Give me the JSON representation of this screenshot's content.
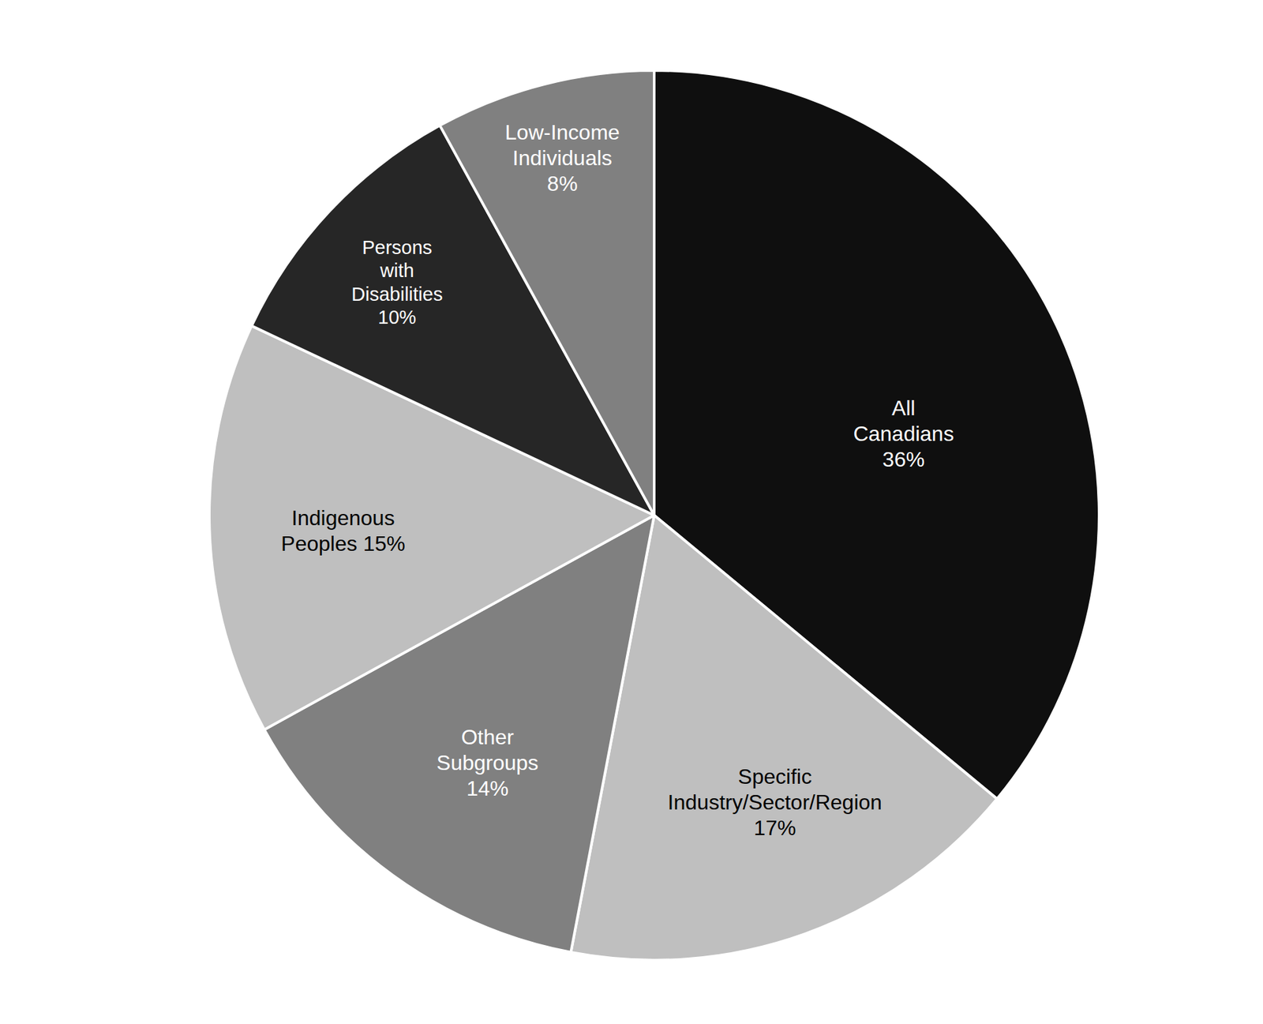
{
  "chart_data": {
    "type": "pie",
    "categories": [
      "All Canadians",
      "Specific Industry/Sector/Region",
      "Other Subgroups",
      "Indigenous Peoples",
      "Persons with Disabilities",
      "Low-Income Individuals"
    ],
    "values": [
      36,
      17,
      14,
      15,
      10,
      8
    ],
    "value_labels": [
      "36%",
      "17%",
      "14%",
      "15%",
      "10%",
      "8%"
    ],
    "colors": [
      "#0f0f0f",
      "#bfbfbf",
      "#808080",
      "#bfbfbf",
      "#262626",
      "#808080"
    ],
    "data_labels": true
  }
}
